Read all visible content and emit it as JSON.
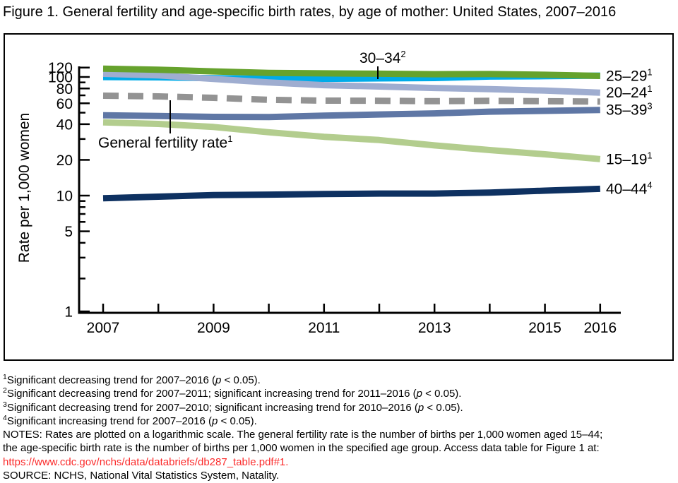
{
  "title": "Figure 1. General fertility and age-specific birth rates, by age of mother: United States, 2007–2016",
  "chart_data": {
    "type": "line",
    "title": "General fertility and age-specific birth rates, by age of mother: United States, 2007–2016",
    "axis_scale": "log10",
    "grid": false,
    "x": [
      2007,
      2008,
      2009,
      2010,
      2011,
      2012,
      2013,
      2014,
      2015,
      2016
    ],
    "x_tick_years": [
      2007,
      2009,
      2011,
      2013,
      2015,
      2016
    ],
    "x_tick_labels": [
      "2007",
      "2009",
      "2011",
      "2013",
      "2015",
      "2016"
    ],
    "xlabel": "",
    "ylabel": "Rate per 1,000 women",
    "ylim": [
      1,
      120
    ],
    "y_major_ticks": [
      120,
      100,
      80,
      60,
      40,
      20,
      10,
      5,
      1
    ],
    "y_minor_ticks": [
      90,
      70,
      50,
      30,
      9,
      8,
      7,
      6,
      4,
      3,
      2
    ],
    "series": [
      {
        "name": "30–34",
        "sup": "2",
        "color": "#00abe8",
        "dashed": false,
        "label_right": false,
        "values": [
          99.9,
          99.3,
          97.5,
          96.5,
          96.5,
          97.3,
          98.0,
          100.8,
          101.5,
          102.7
        ]
      },
      {
        "name": "20–24",
        "sup": "1",
        "color": "#9fadd0",
        "dashed": false,
        "label_right": true,
        "values": [
          106.3,
          103.0,
          96.2,
          90.0,
          85.3,
          83.1,
          80.7,
          79.0,
          76.8,
          73.8
        ]
      },
      {
        "name": "25–29",
        "sup": "1",
        "color": "#66a22d",
        "dashed": false,
        "label_right": true,
        "values": [
          117.5,
          115.1,
          111.5,
          108.3,
          107.2,
          106.5,
          105.5,
          105.8,
          104.3,
          102.1
        ]
      },
      {
        "name": "General fertility rate",
        "sup": "1",
        "color": "#939393",
        "dashed": true,
        "label_right": false,
        "values": [
          69.5,
          68.6,
          66.7,
          64.1,
          63.2,
          63.0,
          62.5,
          62.9,
          62.5,
          62.0
        ]
      },
      {
        "name": "35–39",
        "sup": "3",
        "color": "#5f77a5",
        "dashed": false,
        "label_right": true,
        "values": [
          47.5,
          46.9,
          46.1,
          45.9,
          47.2,
          48.3,
          49.3,
          51.0,
          51.8,
          52.7
        ]
      },
      {
        "name": "15–19",
        "sup": "1",
        "color": "#b3cd8e",
        "dashed": false,
        "label_right": true,
        "values": [
          41.5,
          40.2,
          37.9,
          34.2,
          31.3,
          29.4,
          26.5,
          24.2,
          22.3,
          20.3
        ]
      },
      {
        "name": "40–44",
        "sup": "4",
        "color": "#0e3161",
        "dashed": false,
        "label_right": true,
        "values": [
          9.5,
          9.8,
          10.1,
          10.2,
          10.3,
          10.4,
          10.4,
          10.6,
          11.0,
          11.4
        ]
      }
    ]
  },
  "annotations": {
    "age_30_34": {
      "label": "30–34",
      "sup": "2"
    },
    "gfr": {
      "label": "General fertility rate",
      "sup": "1"
    }
  },
  "footnotes": [
    {
      "sup": "1",
      "text": "Significant decreasing trend for 2007–2016 (p < 0.05)."
    },
    {
      "sup": "2",
      "text": "Significant decreasing trend for 2007–2011; significant increasing trend for 2011–2016 (p < 0.05)."
    },
    {
      "sup": "3",
      "text": "Significant decreasing trend for 2007–2010; significant increasing trend for 2010–2016 (p < 0.05)."
    },
    {
      "sup": "4",
      "text": "Significant increasing trend for 2007–2016 (p < 0.05)."
    }
  ],
  "notes": {
    "line1": "NOTES: Rates are plotted on a logarithmic scale. The general fertility rate is the number of births per 1,000 women aged 15–44;",
    "line2": "the age-specific birth rate is the number of births per 1,000 women in the specified age group. Access data table for Figure 1 at:",
    "link_text": "https://www.cdc.gov/nchs/data/databriefs/db287_table.pdf#1",
    "link_suffix": ".",
    "source": "SOURCE: NCHS, National Vital Statistics System, Natality."
  },
  "colors": {
    "link": "#fb2b2b",
    "axis": "#000000"
  }
}
